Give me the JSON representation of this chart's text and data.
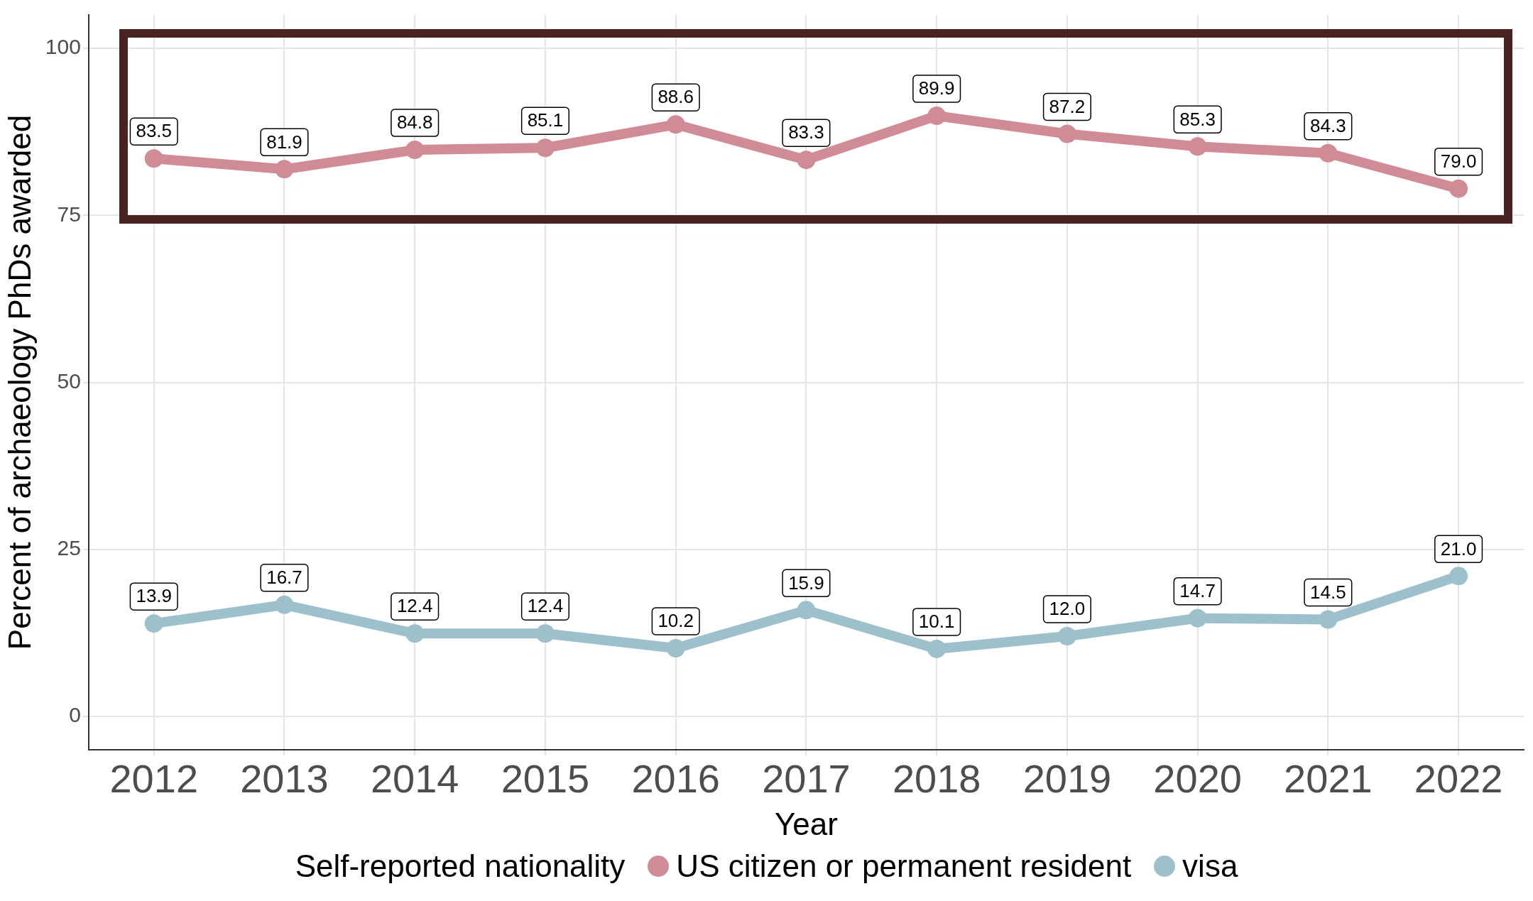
{
  "chart_data": {
    "type": "line",
    "xlabel": "Year",
    "ylabel": "Percent of archaeology PhDs awarded",
    "legend_title": "Self-reported nationality",
    "categories": [
      "2012",
      "2013",
      "2014",
      "2015",
      "2016",
      "2017",
      "2018",
      "2019",
      "2020",
      "2021",
      "2022"
    ],
    "series": [
      {
        "name": "US citizen or permanent resident",
        "color": "#d08c96",
        "values": [
          83.5,
          81.9,
          84.8,
          85.1,
          88.6,
          83.3,
          89.9,
          87.2,
          85.3,
          84.3,
          79.0
        ],
        "value_labels": [
          "83.5",
          "81.9",
          "84.8",
          "85.1",
          "88.6",
          "83.3",
          "89.9",
          "87.2",
          "85.3",
          "84.3",
          "79.0"
        ]
      },
      {
        "name": "visa",
        "color": "#9cc0cc",
        "values": [
          13.9,
          16.7,
          12.4,
          12.4,
          10.2,
          15.9,
          10.1,
          12.0,
          14.7,
          14.5,
          21.0
        ],
        "value_labels": [
          "13.9",
          "16.7",
          "12.4",
          "12.4",
          "10.2",
          "15.9",
          "10.1",
          "12.0",
          "14.7",
          "14.5",
          "21.0"
        ]
      }
    ],
    "ylim": [
      -5,
      105
    ],
    "yticks": [
      0,
      25,
      50,
      75,
      100
    ],
    "grid": true,
    "legend": "bottom",
    "marker": "circle",
    "line_style": "solid"
  }
}
